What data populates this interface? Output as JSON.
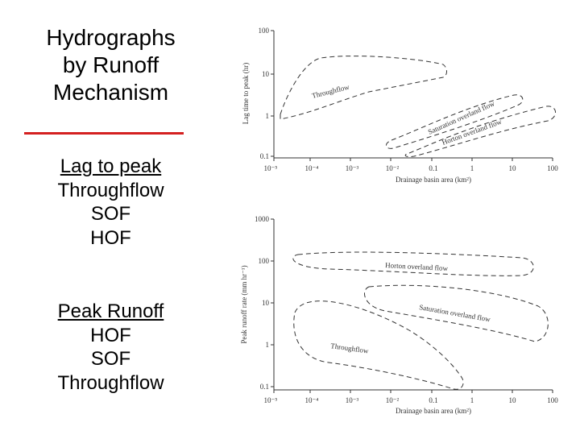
{
  "title": {
    "lines": [
      "Hydrographs",
      "by Runoff",
      "Mechanism"
    ]
  },
  "lag_list": {
    "heading": "Lag to peak",
    "items": [
      "Throughflow",
      "SOF",
      "HOF"
    ]
  },
  "peak_list": {
    "heading": "Peak Runoff",
    "items": [
      "HOF",
      "SOF",
      "Throughflow"
    ]
  },
  "colors": {
    "rule": "#d42020",
    "ink": "#000000",
    "figure_ink": "#333333"
  },
  "figures": [
    {
      "ylabel": "Lag time to peak (hr)",
      "xlabel": "Drainage basin area (km²)",
      "y_ticks": [
        "100",
        "10",
        "1",
        "0.1"
      ],
      "x_ticks": [
        "10⁻⁵",
        "10⁻⁴",
        "10⁻³",
        "10⁻²",
        "0.1",
        "1",
        "10",
        "100"
      ],
      "region_labels": [
        "Throughflow",
        "Saturation overland flow",
        "Horton overland flow"
      ]
    },
    {
      "ylabel": "Peak runoff rate (mm hr⁻¹)",
      "xlabel": "Drainage basin area (km²)",
      "y_ticks": [
        "1000",
        "100",
        "10",
        "1",
        "0.1"
      ],
      "x_ticks": [
        "10⁻⁵",
        "10⁻⁴",
        "10⁻³",
        "10⁻²",
        "0.1",
        "1",
        "10",
        "100"
      ],
      "region_labels": [
        "Horton overland flow",
        "Saturation overland flow",
        "Throughflow"
      ]
    }
  ]
}
